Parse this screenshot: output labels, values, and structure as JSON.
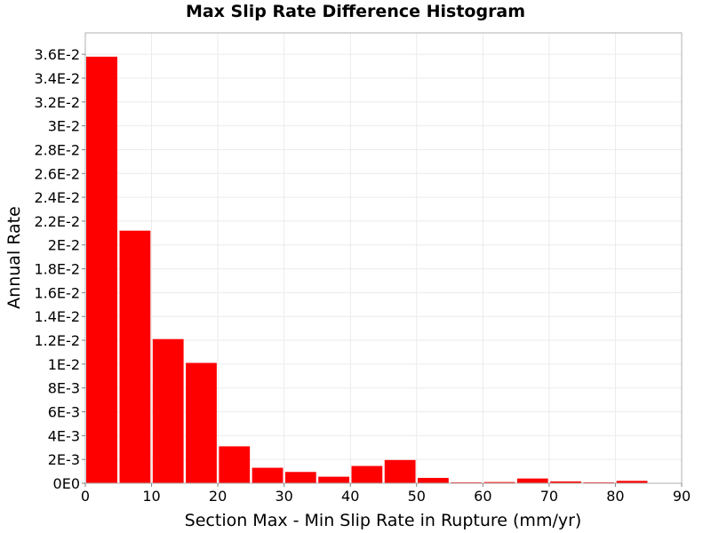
{
  "chart_data": {
    "type": "bar",
    "title": "Max Slip Rate Difference Histogram",
    "xlabel": "Section Max - Min Slip Rate in Rupture (mm/yr)",
    "ylabel": "Annual Rate",
    "xlim": [
      0,
      90
    ],
    "ylim": [
      0,
      0.0378
    ],
    "bin_width": 5,
    "bins": [
      {
        "x_start": 0,
        "x_end": 5,
        "value": 0.0358
      },
      {
        "x_start": 5,
        "x_end": 10,
        "value": 0.0212
      },
      {
        "x_start": 10,
        "x_end": 15,
        "value": 0.0121
      },
      {
        "x_start": 15,
        "x_end": 20,
        "value": 0.0101
      },
      {
        "x_start": 20,
        "x_end": 25,
        "value": 0.0031
      },
      {
        "x_start": 25,
        "x_end": 30,
        "value": 0.0013
      },
      {
        "x_start": 30,
        "x_end": 35,
        "value": 0.00095
      },
      {
        "x_start": 35,
        "x_end": 40,
        "value": 0.00055
      },
      {
        "x_start": 40,
        "x_end": 45,
        "value": 0.00145
      },
      {
        "x_start": 45,
        "x_end": 50,
        "value": 0.00195
      },
      {
        "x_start": 50,
        "x_end": 55,
        "value": 0.00045
      },
      {
        "x_start": 55,
        "x_end": 60,
        "value": 5e-05
      },
      {
        "x_start": 60,
        "x_end": 65,
        "value": 0.0001
      },
      {
        "x_start": 65,
        "x_end": 70,
        "value": 0.0004
      },
      {
        "x_start": 70,
        "x_end": 75,
        "value": 0.00015
      },
      {
        "x_start": 75,
        "x_end": 80,
        "value": 2e-05
      },
      {
        "x_start": 80,
        "x_end": 85,
        "value": 0.0002
      },
      {
        "x_start": 85,
        "x_end": 90,
        "value": 0.0
      }
    ],
    "x_ticks": [
      {
        "value": 0,
        "label": "0"
      },
      {
        "value": 10,
        "label": "10"
      },
      {
        "value": 20,
        "label": "20"
      },
      {
        "value": 30,
        "label": "30"
      },
      {
        "value": 40,
        "label": "40"
      },
      {
        "value": 50,
        "label": "50"
      },
      {
        "value": 60,
        "label": "60"
      },
      {
        "value": 70,
        "label": "70"
      },
      {
        "value": 80,
        "label": "80"
      },
      {
        "value": 90,
        "label": "90"
      }
    ],
    "y_ticks": [
      {
        "value": 0,
        "label": "0E0"
      },
      {
        "value": 0.002,
        "label": "2E-3"
      },
      {
        "value": 0.004,
        "label": "4E-3"
      },
      {
        "value": 0.006,
        "label": "6E-3"
      },
      {
        "value": 0.008,
        "label": "8E-3"
      },
      {
        "value": 0.01,
        "label": "1E-2"
      },
      {
        "value": 0.012,
        "label": "1.2E-2"
      },
      {
        "value": 0.014,
        "label": "1.4E-2"
      },
      {
        "value": 0.016,
        "label": "1.6E-2"
      },
      {
        "value": 0.018,
        "label": "1.8E-2"
      },
      {
        "value": 0.02,
        "label": "2E-2"
      },
      {
        "value": 0.022,
        "label": "2.2E-2"
      },
      {
        "value": 0.024,
        "label": "2.4E-2"
      },
      {
        "value": 0.026,
        "label": "2.6E-2"
      },
      {
        "value": 0.028,
        "label": "2.8E-2"
      },
      {
        "value": 0.03,
        "label": "3E-2"
      },
      {
        "value": 0.032,
        "label": "3.2E-2"
      },
      {
        "value": 0.034,
        "label": "3.4E-2"
      },
      {
        "value": 0.036,
        "label": "3.6E-2"
      }
    ],
    "grid": true,
    "bar_color": "#ff0000",
    "grid_color": "#ebebeb",
    "frame_color": "#b0b0b0"
  }
}
